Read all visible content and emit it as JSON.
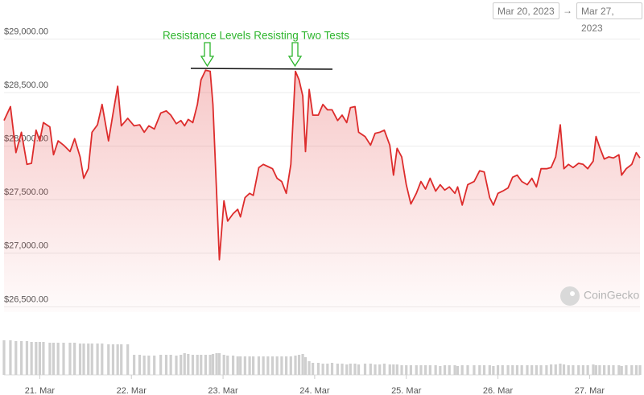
{
  "date_range": {
    "from": "Mar 20, 2023",
    "separator": "→",
    "to": "Mar 27, 2023"
  },
  "chart_data": {
    "type": "line",
    "annotation": "Resistance Levels Resisting Two Tests",
    "watermark": "CoinGecko",
    "x": [
      20.61,
      20.68,
      20.74,
      20.8,
      20.86,
      20.91,
      20.96,
      21,
      21.04,
      21.11,
      21.15,
      21.2,
      21.26,
      21.33,
      21.38,
      21.44,
      21.48,
      21.53,
      21.57,
      21.63,
      21.68,
      21.75,
      21.8,
      21.85,
      21.89,
      21.96,
      22.03,
      22.09,
      22.14,
      22.19,
      22.25,
      22.32,
      22.38,
      22.43,
      22.49,
      22.54,
      22.58,
      22.62,
      22.67,
      22.72,
      22.76,
      22.81,
      22.86,
      22.89,
      22.93,
      22.96,
      23.01,
      23.05,
      23.11,
      23.16,
      23.19,
      23.24,
      23.29,
      23.33,
      23.39,
      23.44,
      23.49,
      23.54,
      23.59,
      23.64,
      23.69,
      23.74,
      23.79,
      23.83,
      23.87,
      23.9,
      23.94,
      23.98,
      24.04,
      24.09,
      24.14,
      24.19,
      24.25,
      24.3,
      24.35,
      24.39,
      24.44,
      24.48,
      24.55,
      24.61,
      24.66,
      24.71,
      24.76,
      24.82,
      24.86,
      24.9,
      24.95,
      25,
      25.05,
      25.11,
      25.16,
      25.21,
      25.26,
      25.32,
      25.37,
      25.42,
      25.47,
      25.53,
      25.56,
      25.61,
      25.67,
      25.74,
      25.8,
      25.85,
      25.91,
      25.95,
      26,
      26.05,
      26.11,
      26.16,
      26.21,
      26.26,
      26.32,
      26.37,
      26.42,
      26.47,
      26.53,
      26.58,
      26.63,
      26.68,
      26.72,
      26.77,
      26.82,
      26.88,
      26.93,
      26.98,
      27.04,
      27.07,
      27.11,
      27.16,
      27.21,
      27.26,
      27.32,
      27.35,
      27.4,
      27.46,
      27.51,
      27.55
    ],
    "xlim": [
      20.61,
      27.55
    ],
    "xticks": [
      {
        "value": 21,
        "label": "21. Mar"
      },
      {
        "value": 22,
        "label": "22. Mar"
      },
      {
        "value": 23,
        "label": "23. Mar"
      },
      {
        "value": 24,
        "label": "24. Mar"
      },
      {
        "value": 25,
        "label": "25. Mar"
      },
      {
        "value": 26,
        "label": "26. Mar"
      },
      {
        "value": 27,
        "label": "27. Mar"
      }
    ],
    "ylim": [
      26450,
      29140
    ],
    "yticks": [
      {
        "value": 26500,
        "label": "$26,500.00"
      },
      {
        "value": 27000,
        "label": "$27,000.00"
      },
      {
        "value": 27500,
        "label": "$27,500.00"
      },
      {
        "value": 28000,
        "label": "$28,000.00"
      },
      {
        "value": 28500,
        "label": "$28,500.00"
      },
      {
        "value": 29000,
        "label": "$29,000.00"
      }
    ],
    "y2lim": [
      0,
      50
    ],
    "grid": true,
    "series": [
      {
        "color": "#dd2c2c",
        "values": [
          28240,
          28370,
          27940,
          28130,
          27830,
          27840,
          28150,
          28050,
          28220,
          28180,
          27920,
          28050,
          28010,
          27950,
          28070,
          27900,
          27700,
          27790,
          28130,
          28200,
          28390,
          28050,
          28310,
          28560,
          28190,
          28260,
          28190,
          28200,
          28130,
          28190,
          28160,
          28310,
          28330,
          28290,
          28210,
          28240,
          28190,
          28250,
          28220,
          28390,
          28620,
          28710,
          28700,
          28390,
          27560,
          26940,
          27490,
          27300,
          27370,
          27410,
          27340,
          27520,
          27560,
          27540,
          27800,
          27830,
          27810,
          27790,
          27700,
          27670,
          27560,
          27830,
          28700,
          28620,
          28470,
          27950,
          28530,
          28290,
          28290,
          28390,
          28340,
          28340,
          28240,
          28290,
          28220,
          28360,
          28370,
          28130,
          28090,
          28010,
          28120,
          28130,
          28150,
          28010,
          27730,
          27980,
          27900,
          27640,
          27460,
          27560,
          27670,
          27600,
          27700,
          27580,
          27640,
          27590,
          27620,
          27560,
          27620,
          27450,
          27640,
          27670,
          27770,
          27760,
          27520,
          27450,
          27560,
          27580,
          27610,
          27710,
          27730,
          27670,
          27640,
          27700,
          27620,
          27790,
          27790,
          27800,
          27900,
          28200,
          27790,
          27830,
          27800,
          27840,
          27830,
          27790,
          27860,
          28090,
          27990,
          27880,
          27900,
          27890,
          27920,
          27730,
          27790,
          27830,
          27940,
          27890
        ]
      },
      {
        "type": "bar",
        "axis": "y2",
        "color": "#cfcfcf",
        "values": [
          43,
          43,
          42,
          42,
          42,
          41,
          41,
          41,
          41,
          40,
          40,
          40,
          40,
          40,
          40,
          39,
          39,
          39,
          39,
          39,
          39,
          38,
          38,
          38,
          38,
          38,
          25,
          25,
          24,
          24,
          24,
          25,
          25,
          25,
          24,
          25,
          27,
          26,
          25,
          25,
          25,
          25,
          25,
          26,
          27,
          27,
          25,
          24,
          24,
          23,
          23,
          23,
          23,
          23,
          23,
          23,
          23,
          23,
          23,
          23,
          23,
          23,
          24,
          25,
          26,
          22,
          17,
          15,
          15,
          14,
          14,
          15,
          14,
          14,
          13,
          14,
          14,
          13,
          14,
          14,
          13,
          13,
          14,
          13,
          13,
          13,
          12,
          12,
          12,
          12,
          12,
          12,
          12,
          12,
          11,
          12,
          12,
          12,
          11,
          12,
          12,
          12,
          12,
          12,
          12,
          11,
          12,
          12,
          12,
          12,
          12,
          12,
          12,
          12,
          12,
          12,
          12,
          13,
          13,
          14,
          13,
          12,
          12,
          12,
          12,
          12,
          13,
          12,
          12,
          12,
          12,
          12,
          12,
          11,
          12,
          12,
          12,
          12
        ]
      }
    ]
  }
}
